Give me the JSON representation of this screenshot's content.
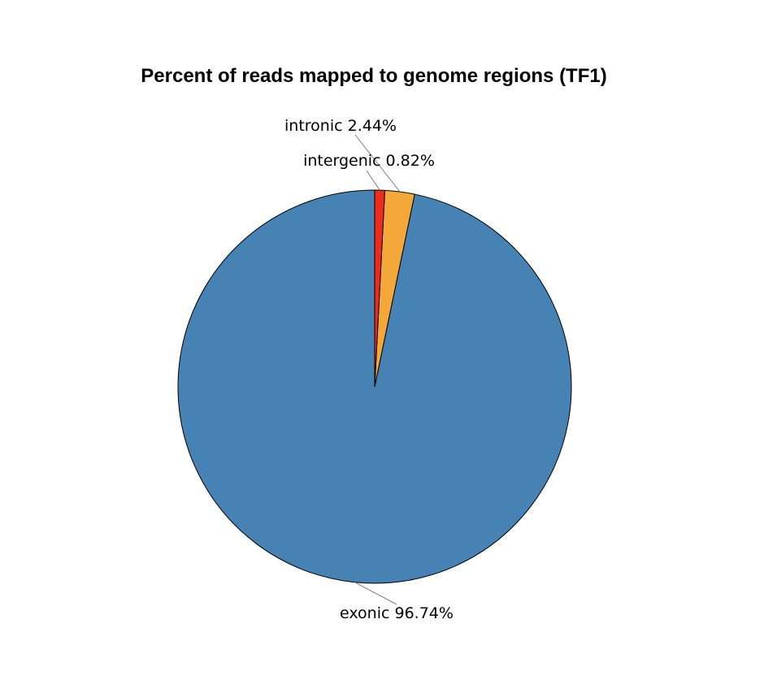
{
  "chart_data": {
    "type": "pie",
    "title": "Percent of reads mapped to genome regions (TF1)",
    "slices": [
      {
        "name": "exonic",
        "value": 96.74,
        "label": "exonic 96.74%",
        "color": "#4682b4"
      },
      {
        "name": "intronic",
        "value": 2.44,
        "label": "intronic 2.44%",
        "color": "#f4a83a"
      },
      {
        "name": "intergenic",
        "value": 0.82,
        "label": "intergenic 0.82%",
        "color": "#ee2c1c"
      }
    ]
  }
}
